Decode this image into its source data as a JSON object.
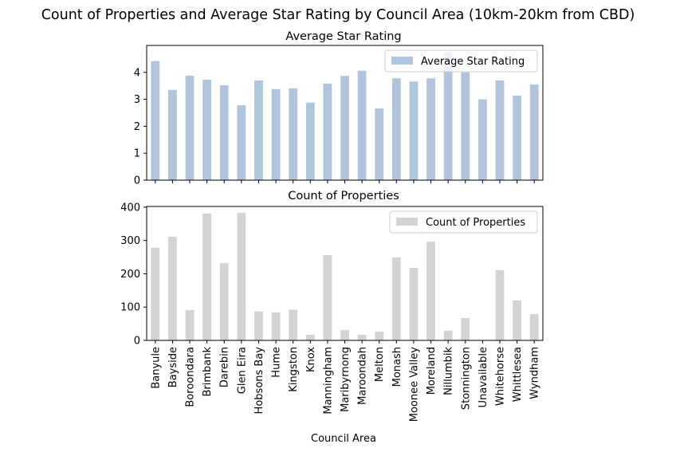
{
  "figure": {
    "suptitle": "Count of Properties and Average Star Rating by Council Area (10km-20km from CBD)",
    "xlabel": "Council Area"
  },
  "colors": {
    "rating_bar": "#b0c4de",
    "count_bar": "#d3d3d3",
    "axis": "#000000"
  },
  "chart_data": [
    {
      "type": "bar",
      "title": "Average Star Rating",
      "legend": "Average Star Rating",
      "legend_position": "top-right",
      "ylim": [
        0,
        5.0
      ],
      "yticks": [
        0,
        1,
        2,
        3,
        4
      ],
      "categories": [
        "Banyule",
        "Bayside",
        "Boroondara",
        "Brimbank",
        "Darebin",
        "Glen Eira",
        "Hobsons Bay",
        "Hume",
        "Kingston",
        "Knox",
        "Manningham",
        "Maribyrnong",
        "Maroondah",
        "Melton",
        "Monash",
        "Moonee Valley",
        "Moreland",
        "Nillumbik",
        "Stonnington",
        "Unavailable",
        "Whitehorse",
        "Whittlesea",
        "Wyndham"
      ],
      "values": [
        4.42,
        3.35,
        3.88,
        3.73,
        3.52,
        2.78,
        3.7,
        3.38,
        3.41,
        2.88,
        3.58,
        3.87,
        4.06,
        2.66,
        3.78,
        3.66,
        3.78,
        4.75,
        4.0,
        3.0,
        3.7,
        3.14,
        3.55
      ]
    },
    {
      "type": "bar",
      "title": "Count of Properties",
      "legend": "Count of Properties",
      "legend_position": "top-right",
      "ylim": [
        0,
        402
      ],
      "yticks": [
        0,
        100,
        200,
        300,
        400
      ],
      "xlabel": "Council Area",
      "categories": [
        "Banyule",
        "Bayside",
        "Boroondara",
        "Brimbank",
        "Darebin",
        "Glen Eira",
        "Hobsons Bay",
        "Hume",
        "Kingston",
        "Knox",
        "Manningham",
        "Maribyrnong",
        "Maroondah",
        "Melton",
        "Monash",
        "Moonee Valley",
        "Moreland",
        "Nillumbik",
        "Stonnington",
        "Unavailable",
        "Whitehorse",
        "Whittlesea",
        "Wyndham"
      ],
      "values": [
        278,
        311,
        91,
        381,
        232,
        383,
        87,
        84,
        92,
        17,
        256,
        31,
        17,
        26,
        249,
        218,
        296,
        29,
        67,
        1,
        211,
        120,
        79
      ]
    }
  ]
}
